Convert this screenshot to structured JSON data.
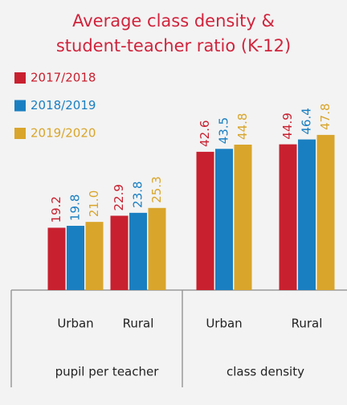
{
  "chart_data": {
    "type": "bar",
    "title": [
      "Average class density &",
      "student-teacher ratio (K-12)"
    ],
    "categories": [
      "Urban",
      "Rural",
      "Urban",
      "Rural"
    ],
    "groups": [
      "pupil per teacher",
      "class density"
    ],
    "series": [
      {
        "name": "2017/2018",
        "color": "#c8202f",
        "values": [
          19.2,
          22.9,
          42.6,
          44.9
        ],
        "value_labels": [
          "19.2",
          "22.9",
          "42.6",
          "44.9"
        ]
      },
      {
        "name": "2018/2019",
        "color": "#1a7fc1",
        "values": [
          19.8,
          23.8,
          43.5,
          46.4
        ],
        "value_labels": [
          "19.8",
          "23.8",
          "43.5",
          "46.4"
        ]
      },
      {
        "name": "2019/2020",
        "color": "#d9a52b",
        "values": [
          21.0,
          25.3,
          44.8,
          47.8
        ],
        "value_labels": [
          "21.0",
          "25.3",
          "44.8",
          "47.8"
        ]
      }
    ]
  }
}
